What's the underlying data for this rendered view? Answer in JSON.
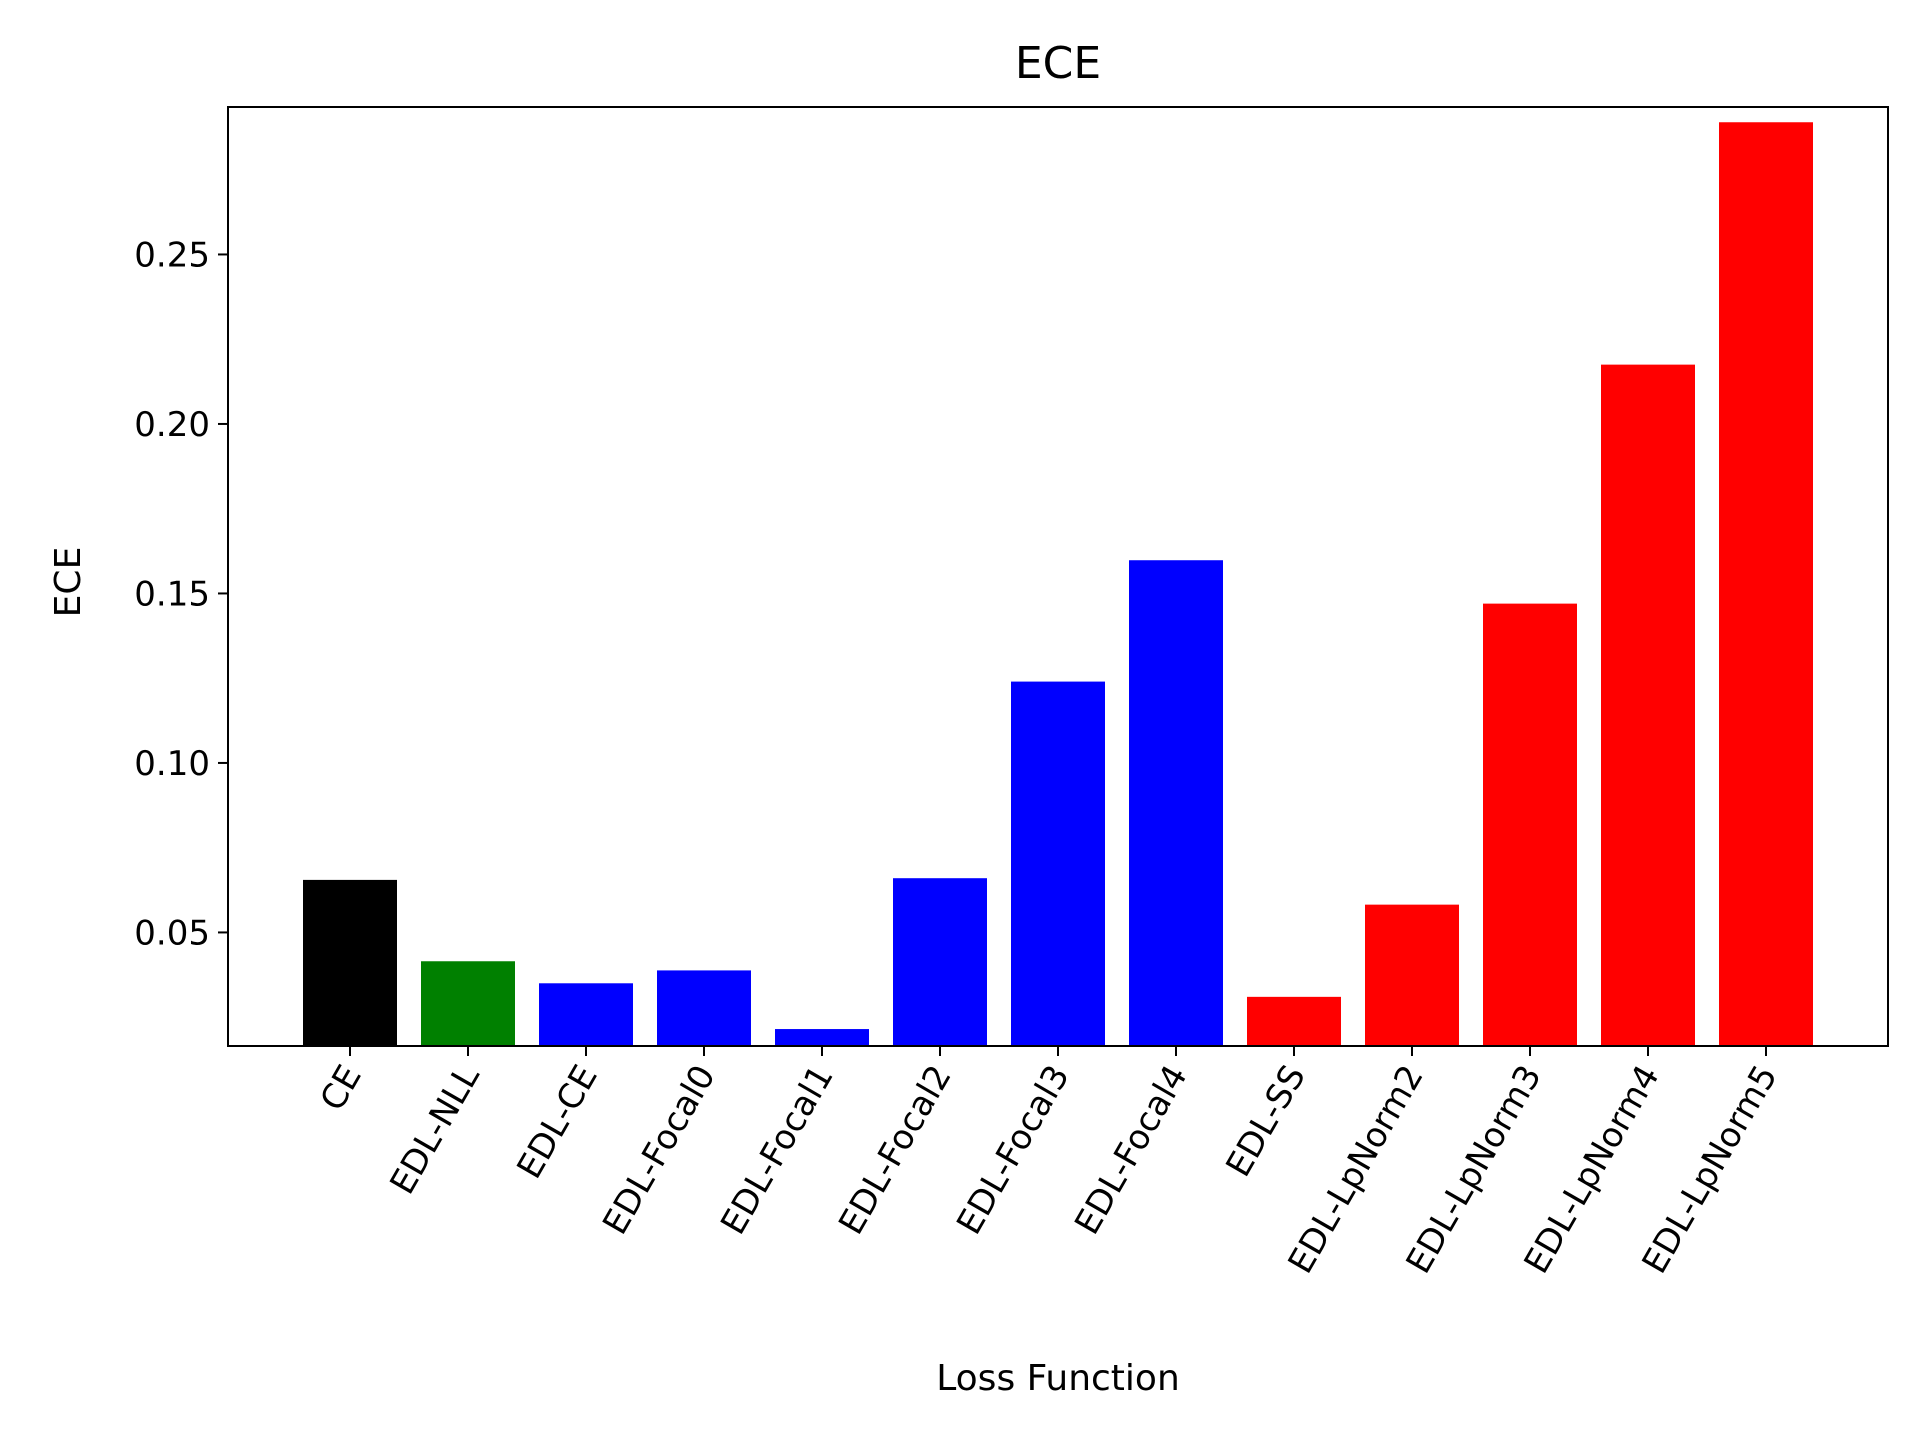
{
  "chart_data": {
    "type": "bar",
    "title": "ECE",
    "xlabel": "Loss Function",
    "ylabel": "ECE",
    "categories": [
      "CE",
      "EDL-NLL",
      "EDL-CE",
      "EDL-Focal0",
      "EDL-Focal1",
      "EDL-Focal2",
      "EDL-Focal3",
      "EDL-Focal4",
      "EDL-SS",
      "EDL-LpNorm2",
      "EDL-LpNorm3",
      "EDL-LpNorm4",
      "EDL-LpNorm5"
    ],
    "values": [
      0.0655,
      0.0415,
      0.035,
      0.0388,
      0.0215,
      0.066,
      0.124,
      0.1598,
      0.031,
      0.0582,
      0.147,
      0.2175,
      0.289
    ],
    "colors": [
      "#000000",
      "#008000",
      "#0000ff",
      "#0000ff",
      "#0000ff",
      "#0000ff",
      "#0000ff",
      "#0000ff",
      "#ff0000",
      "#ff0000",
      "#ff0000",
      "#ff0000",
      "#ff0000"
    ],
    "yticks": [
      0.05,
      0.1,
      0.15,
      0.2,
      0.25
    ],
    "ytick_labels": [
      "0.05",
      "0.10",
      "0.15",
      "0.20",
      "0.25"
    ],
    "ylim": [
      0.0165,
      0.2935
    ],
    "grid": false,
    "legend": false
  }
}
